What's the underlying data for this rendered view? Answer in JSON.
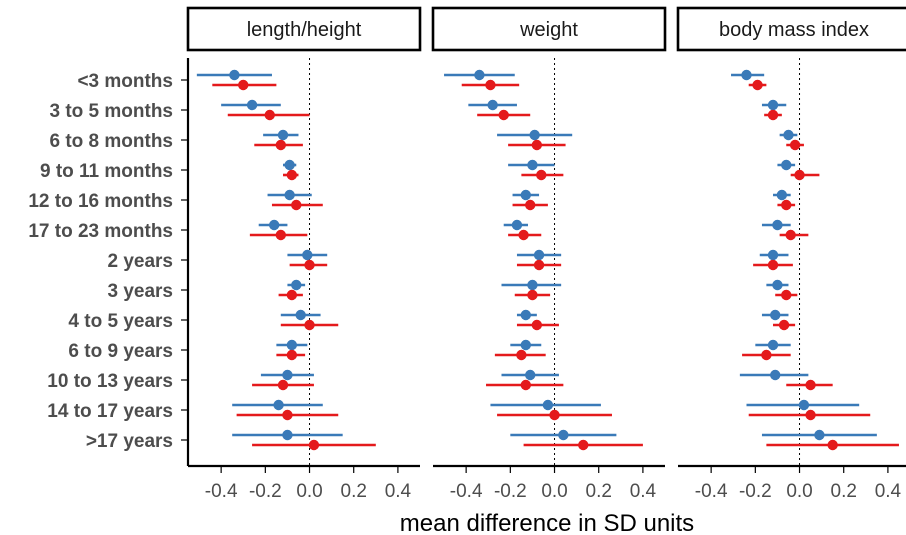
{
  "chart_data": {
    "type": "forest",
    "xlabel": "mean difference in SD units",
    "xlim": [
      -0.55,
      0.5
    ],
    "xticks": [
      -0.4,
      -0.2,
      0.0,
      0.2,
      0.4
    ],
    "xtick_labels": [
      "-0.4",
      "-0.2",
      "0.0",
      "0.2",
      "0.4"
    ],
    "reference_line": 0,
    "grid": false,
    "categories": [
      "<3 months",
      "3 to 5 months",
      "6 to 8 months",
      "9 to 11 months",
      "12 to 16 months",
      "17 to 23 months",
      "2 years",
      "3 years",
      "4 to 5 years",
      "6 to 9 years",
      "10 to 13 years",
      "14 to 17 years",
      ">17 years"
    ],
    "colors": {
      "series_blue": "#3a7ab8",
      "series_red": "#e41a1c",
      "axis": "#000000",
      "reference": "#000000"
    },
    "panels": [
      {
        "title": "length/height",
        "series": [
          {
            "color": "#3a7ab8",
            "est": [
              -0.34,
              -0.26,
              -0.12,
              -0.09,
              -0.09,
              -0.16,
              -0.01,
              -0.06,
              -0.04,
              -0.08,
              -0.1,
              -0.14,
              -0.1
            ],
            "low": [
              -0.51,
              -0.4,
              -0.21,
              -0.12,
              -0.19,
              -0.23,
              -0.1,
              -0.1,
              -0.13,
              -0.15,
              -0.22,
              -0.35,
              -0.35
            ],
            "high": [
              -0.17,
              -0.13,
              -0.05,
              -0.06,
              0.01,
              -0.1,
              0.08,
              -0.02,
              0.05,
              -0.01,
              0.02,
              0.06,
              0.15
            ]
          },
          {
            "color": "#e41a1c",
            "est": [
              -0.3,
              -0.18,
              -0.13,
              -0.08,
              -0.06,
              -0.13,
              0.0,
              -0.08,
              0.0,
              -0.08,
              -0.12,
              -0.1,
              0.02
            ],
            "low": [
              -0.44,
              -0.37,
              -0.25,
              -0.12,
              -0.17,
              -0.27,
              -0.09,
              -0.14,
              -0.13,
              -0.15,
              -0.26,
              -0.33,
              -0.26
            ],
            "high": [
              -0.15,
              0.0,
              -0.03,
              -0.05,
              0.06,
              -0.01,
              0.08,
              -0.03,
              0.13,
              -0.02,
              0.02,
              0.13,
              0.3
            ]
          }
        ]
      },
      {
        "title": "weight",
        "series": [
          {
            "color": "#3a7ab8",
            "est": [
              -0.34,
              -0.28,
              -0.09,
              -0.1,
              -0.13,
              -0.17,
              -0.07,
              -0.1,
              -0.13,
              -0.13,
              -0.11,
              -0.03,
              0.04
            ],
            "low": [
              -0.5,
              -0.39,
              -0.26,
              -0.21,
              -0.19,
              -0.23,
              -0.17,
              -0.24,
              -0.17,
              -0.2,
              -0.24,
              -0.29,
              -0.2
            ],
            "high": [
              -0.18,
              -0.17,
              0.08,
              0.0,
              -0.07,
              -0.12,
              0.03,
              0.03,
              -0.08,
              -0.06,
              0.02,
              0.21,
              0.28
            ]
          },
          {
            "color": "#e41a1c",
            "est": [
              -0.29,
              -0.23,
              -0.08,
              -0.06,
              -0.11,
              -0.14,
              -0.07,
              -0.1,
              -0.08,
              -0.15,
              -0.13,
              0.0,
              0.13
            ],
            "low": [
              -0.42,
              -0.35,
              -0.21,
              -0.15,
              -0.19,
              -0.21,
              -0.17,
              -0.18,
              -0.17,
              -0.27,
              -0.31,
              -0.26,
              -0.14
            ],
            "high": [
              -0.16,
              -0.11,
              0.05,
              0.04,
              -0.03,
              -0.06,
              0.03,
              -0.02,
              0.02,
              -0.04,
              0.04,
              0.26,
              0.4
            ]
          }
        ]
      },
      {
        "title": "body mass index",
        "series": [
          {
            "color": "#3a7ab8",
            "est": [
              -0.24,
              -0.12,
              -0.05,
              -0.06,
              -0.08,
              -0.1,
              -0.12,
              -0.1,
              -0.11,
              -0.12,
              -0.11,
              0.02,
              0.09
            ],
            "low": [
              -0.31,
              -0.17,
              -0.09,
              -0.1,
              -0.12,
              -0.17,
              -0.18,
              -0.15,
              -0.17,
              -0.2,
              -0.27,
              -0.24,
              -0.17
            ],
            "high": [
              -0.16,
              -0.06,
              -0.01,
              -0.02,
              -0.04,
              -0.04,
              -0.05,
              -0.05,
              -0.05,
              -0.04,
              0.04,
              0.27,
              0.35
            ]
          },
          {
            "color": "#e41a1c",
            "est": [
              -0.19,
              -0.12,
              -0.02,
              0.0,
              -0.06,
              -0.04,
              -0.12,
              -0.06,
              -0.07,
              -0.15,
              0.05,
              0.05,
              0.15
            ],
            "low": [
              -0.23,
              -0.16,
              -0.06,
              -0.04,
              -0.1,
              -0.09,
              -0.21,
              -0.11,
              -0.12,
              -0.26,
              -0.06,
              -0.23,
              -0.15
            ],
            "high": [
              -0.15,
              -0.08,
              0.02,
              0.09,
              -0.02,
              0.04,
              -0.03,
              -0.01,
              -0.02,
              -0.04,
              0.15,
              0.32,
              0.45
            ]
          }
        ]
      }
    ]
  }
}
